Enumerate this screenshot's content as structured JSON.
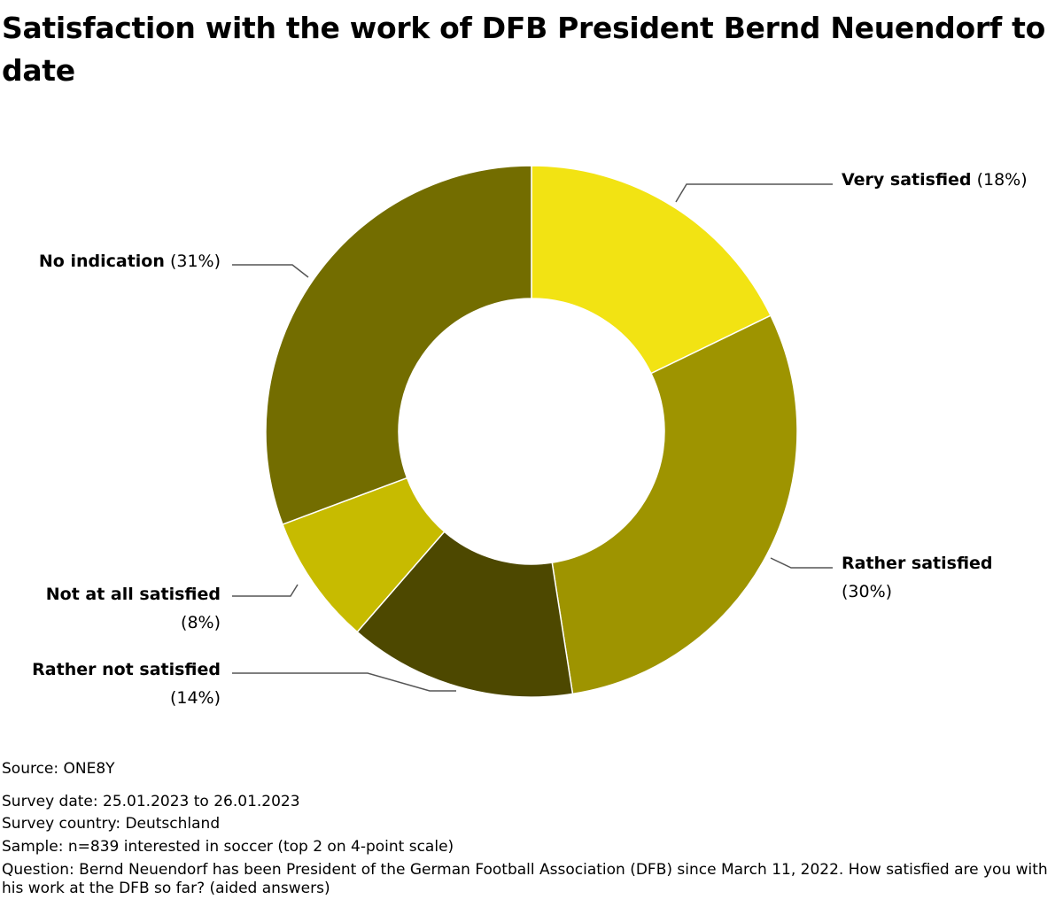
{
  "chart_data": {
    "type": "pie",
    "variant": "donut",
    "title": "Satisfaction with the work of DFB President Bernd Neuendorf to date",
    "slices": [
      {
        "name": "Very satisfied",
        "value": 18,
        "label": "(18%)",
        "color": "#f2e313"
      },
      {
        "name": "Rather satisfied",
        "value": 30,
        "label": "(30%)",
        "color": "#9e9400"
      },
      {
        "name": "Rather not satisfied",
        "value": 14,
        "label": "(14%)",
        "color": "#4d4800"
      },
      {
        "name": "Not at all satisfied",
        "value": 8,
        "label": "(8%)",
        "color": "#c7bb00"
      },
      {
        "name": "No indication",
        "value": 31,
        "label": "(31%)",
        "color": "#736d00"
      }
    ]
  },
  "footer": {
    "source": "Source: ONE8Y",
    "survey_date": "Survey date: 25.01.2023 to 26.01.2023",
    "survey_country": "Survey country: Deutschland",
    "sample": "Sample: n=839 interested in soccer (top 2 on 4-point scale)",
    "question": "Question: Bernd Neuendorf has been President of the German Football Association (DFB) since March 11, 2022. How satisfied are you with his work at the DFB so far? (aided answers)"
  }
}
